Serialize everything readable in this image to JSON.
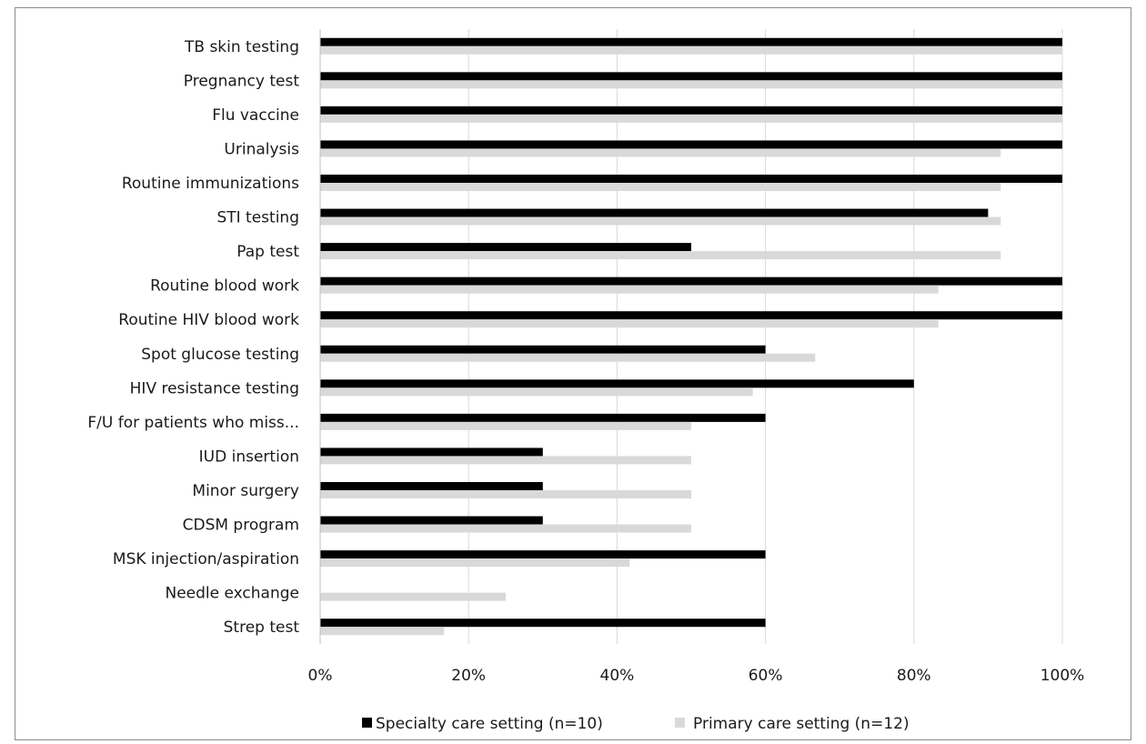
{
  "chart_data": {
    "type": "bar",
    "orientation": "horizontal",
    "title": "",
    "xlabel": "",
    "ylabel": "",
    "xlim": [
      0,
      100
    ],
    "x_ticks": [
      "0%",
      "20%",
      "40%",
      "60%",
      "80%",
      "100%"
    ],
    "grid": "vertical",
    "legend_position": "bottom",
    "categories": [
      "TB skin testing",
      "Pregnancy test",
      "Flu vaccine",
      "Urinalysis",
      "Routine immunizations",
      "STI testing",
      "Pap test",
      "Routine blood work",
      "Routine HIV blood work",
      "Spot glucose testing",
      "HIV resistance testing",
      "F/U for patients who miss...",
      "IUD insertion",
      "Minor surgery",
      "CDSM program",
      "MSK injection/aspiration",
      "Needle exchange",
      "Strep test"
    ],
    "series": [
      {
        "name": "Specialty care setting (n=10)",
        "color": "#000000",
        "values": [
          100,
          100,
          100,
          100,
          100,
          90,
          50,
          100,
          100,
          60,
          80,
          60,
          30,
          30,
          30,
          60,
          0,
          60
        ]
      },
      {
        "name": "Primary care setting (n=12)",
        "color": "#d9d9d9",
        "values": [
          100,
          100,
          100,
          91.7,
          91.7,
          91.7,
          91.7,
          83.3,
          83.3,
          66.7,
          58.3,
          50,
          50,
          50,
          50,
          41.7,
          25,
          16.7
        ]
      }
    ]
  }
}
